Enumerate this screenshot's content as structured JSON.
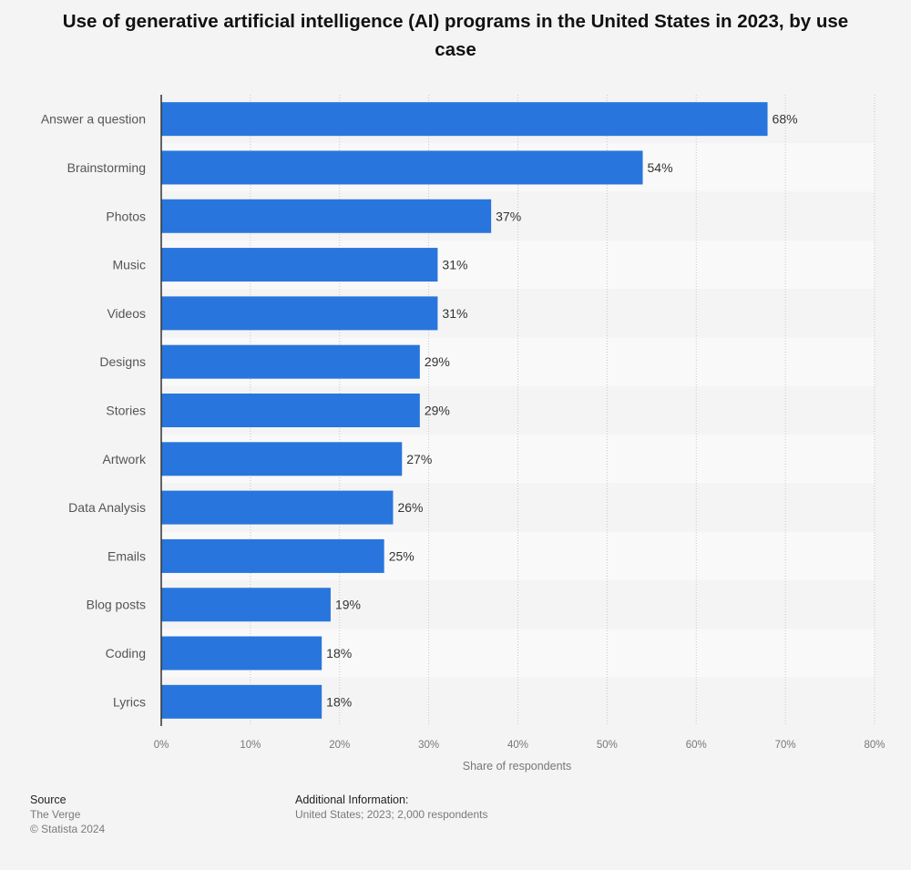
{
  "title": "Use of generative artificial intelligence (AI) programs in the United States in 2023, by use case",
  "chart_data": {
    "type": "bar",
    "orientation": "horizontal",
    "categories": [
      "Answer a question",
      "Brainstorming",
      "Photos",
      "Music",
      "Videos",
      "Designs",
      "Stories",
      "Artwork",
      "Data Analysis",
      "Emails",
      "Blog posts",
      "Coding",
      "Lyrics"
    ],
    "values": [
      68,
      54,
      37,
      31,
      31,
      29,
      29,
      27,
      26,
      25,
      19,
      18,
      18
    ],
    "value_labels": [
      "68%",
      "54%",
      "37%",
      "31%",
      "31%",
      "29%",
      "29%",
      "27%",
      "26%",
      "25%",
      "19%",
      "18%",
      "18%"
    ],
    "xlabel": "Share of respondents",
    "xlim": [
      0,
      80
    ],
    "xticks": [
      "0%",
      "10%",
      "20%",
      "30%",
      "40%",
      "50%",
      "60%",
      "70%",
      "80%"
    ],
    "grid": true,
    "bar_color": "#2876dd"
  },
  "footer": {
    "source_heading": "Source",
    "source_lines": [
      "The Verge",
      "© Statista 2024"
    ],
    "additional_heading": "Additional Information:",
    "additional_text": "United States; 2023; 2,000 respondents"
  }
}
